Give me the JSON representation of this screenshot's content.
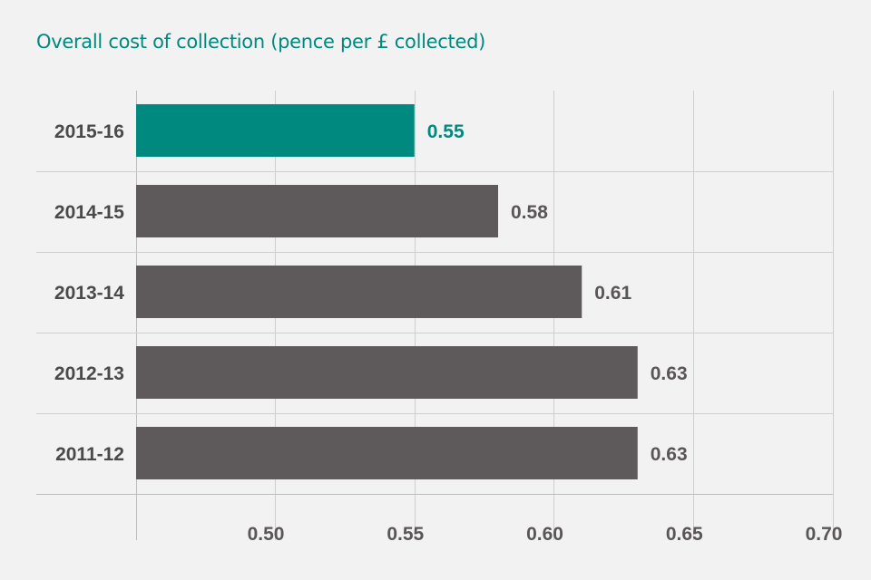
{
  "colors": {
    "background": "#f2f2f2",
    "highlight": "#00897e",
    "bar": "#5e595b",
    "grid": "#cfcfcf",
    "text": "#4a4a4a"
  },
  "chart_data": {
    "type": "bar",
    "orientation": "horizontal",
    "title": "Overall cost of collection (pence per £ collected)",
    "xlabel": "",
    "ylabel": "",
    "categories": [
      "2015-16",
      "2014-15",
      "2013-14",
      "2012-13",
      "2011-12"
    ],
    "values": [
      0.55,
      0.58,
      0.61,
      0.63,
      0.63
    ],
    "value_labels": [
      "0.55",
      "0.58",
      "0.61",
      "0.63",
      "0.63"
    ],
    "highlighted_category": "2015-16",
    "xlim": [
      0.45,
      0.7
    ],
    "xticks": [
      0.5,
      0.55,
      0.6,
      0.65,
      0.7
    ],
    "xtick_labels": [
      "0.50",
      "0.55",
      "0.60",
      "0.65",
      "0.70"
    ],
    "grid": true,
    "legend": "none"
  }
}
